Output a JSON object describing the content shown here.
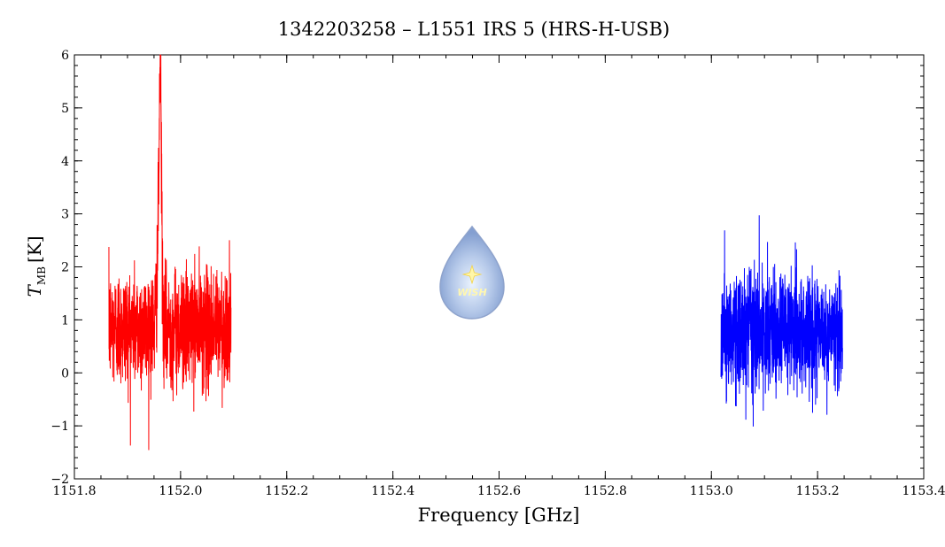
{
  "chart_data": {
    "type": "line",
    "title": "1342203258 – L1551 IRS 5 (HRS-H-USB)",
    "xlabel": "Frequency [GHz]",
    "ylabel_main": "T",
    "ylabel_sub": "MB",
    "ylabel_unit": "[K]",
    "xlim": [
      1151.8,
      1153.4
    ],
    "ylim": [
      -2,
      6
    ],
    "x_ticks": [
      "1151.8",
      "1152.0",
      "1152.2",
      "1152.4",
      "1152.6",
      "1152.8",
      "1153.0",
      "1153.2",
      "1153.4"
    ],
    "y_ticks": [
      "-2",
      "-1",
      "0",
      "1",
      "2",
      "3",
      "4",
      "5",
      "6"
    ],
    "grid": false,
    "series": [
      {
        "color": "#ff0000",
        "x_start": 1151.865,
        "x_end": 1152.095,
        "baseline": 0.85,
        "noise": 0.55,
        "peak_center": 1151.962,
        "peak_amplitude": 4.4,
        "peak_width": 0.0022
      },
      {
        "color": "#0000ff",
        "x_start": 1153.018,
        "x_end": 1153.247,
        "baseline": 0.75,
        "noise": 0.55,
        "peak_center": null,
        "peak_amplitude": 0,
        "peak_width": 0
      }
    ]
  },
  "logo": {
    "text": "WISH"
  }
}
